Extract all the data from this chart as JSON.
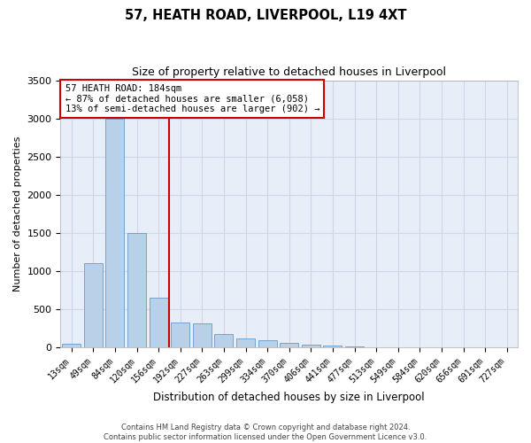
{
  "title": "57, HEATH ROAD, LIVERPOOL, L19 4XT",
  "subtitle": "Size of property relative to detached houses in Liverpool",
  "xlabel": "Distribution of detached houses by size in Liverpool",
  "ylabel": "Number of detached properties",
  "categories": [
    "13sqm",
    "49sqm",
    "84sqm",
    "120sqm",
    "156sqm",
    "192sqm",
    "227sqm",
    "263sqm",
    "299sqm",
    "334sqm",
    "370sqm",
    "406sqm",
    "441sqm",
    "477sqm",
    "513sqm",
    "549sqm",
    "584sqm",
    "620sqm",
    "656sqm",
    "691sqm",
    "727sqm"
  ],
  "values": [
    50,
    1100,
    3000,
    1500,
    650,
    320,
    310,
    175,
    110,
    95,
    55,
    30,
    20,
    15,
    5,
    2,
    1,
    0,
    0,
    0,
    0
  ],
  "bar_color": "#b8d0e8",
  "bar_edge_color": "#6699cc",
  "vline_x": 4.5,
  "vline_color": "#cc0000",
  "annotation_title": "57 HEATH ROAD: 184sqm",
  "annotation_line1": "← 87% of detached houses are smaller (6,058)",
  "annotation_line2": "13% of semi-detached houses are larger (902) →",
  "annotation_box_color": "#cc0000",
  "grid_color": "#ccd8e8",
  "bg_color": "#e8eef8",
  "ylim": [
    0,
    3500
  ],
  "yticks": [
    0,
    500,
    1000,
    1500,
    2000,
    2500,
    3000,
    3500
  ],
  "footer1": "Contains HM Land Registry data © Crown copyright and database right 2024.",
  "footer2": "Contains public sector information licensed under the Open Government Licence v3.0."
}
